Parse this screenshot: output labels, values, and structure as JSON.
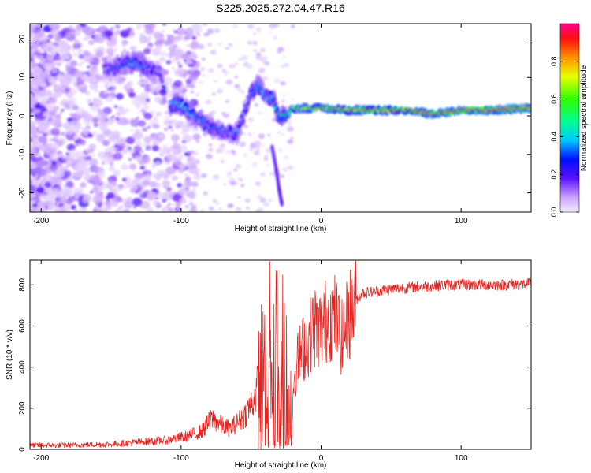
{
  "title": "S225.2025.272.04.47.R16",
  "chart_data": [
    {
      "type": "heatmap",
      "title": "S225.2025.272.04.47.R16",
      "xlabel": "Height of straight line (km)",
      "ylabel": "Frequency (Hz)",
      "xlim": [
        -208,
        150
      ],
      "ylim": [
        -25,
        24
      ],
      "xticks": [
        -200,
        -100,
        0,
        100
      ],
      "yticks": [
        -20,
        -10,
        0,
        10,
        20
      ],
      "colorbar": {
        "label": "Normalized spectral amplitude",
        "range": [
          0,
          1
        ],
        "ticks": [
          0.0,
          0.2,
          0.4,
          0.6,
          0.8
        ]
      },
      "ridge": {
        "x": [
          -155,
          -145,
          -135,
          -125,
          -115,
          -110,
          -100,
          -90,
          -80,
          -70,
          -60,
          -50,
          -45,
          -40,
          -35,
          -30,
          -25,
          -20,
          -10,
          0,
          20,
          40,
          60,
          80,
          100,
          120,
          150
        ],
        "y": [
          11.5,
          13,
          14,
          12.5,
          11,
          3,
          3,
          0,
          -3,
          -4,
          -4.5,
          6,
          8,
          5,
          4.5,
          0,
          0,
          2,
          2,
          2,
          1.5,
          1.5,
          1.5,
          0.5,
          1.5,
          1.5,
          2
        ],
        "amplitude": [
          0.25,
          0.3,
          0.35,
          0.3,
          0.25,
          0.35,
          0.4,
          0.35,
          0.3,
          0.3,
          0.3,
          0.3,
          0.35,
          0.35,
          0.4,
          0.45,
          0.5,
          0.65,
          0.7,
          0.75,
          0.8,
          0.82,
          0.85,
          0.9,
          0.92,
          0.9,
          0.85
        ]
      },
      "low_streak": {
        "x": [
          -35,
          -32,
          -30,
          -28
        ],
        "y": [
          -8,
          -14,
          -19,
          -23
        ]
      }
    },
    {
      "type": "line",
      "xlabel": "Height of straight line (km)",
      "ylabel": "SNR (10 * v/v)",
      "xlim": [
        -208,
        150
      ],
      "ylim": [
        0,
        920
      ],
      "xticks": [
        -200,
        -100,
        0,
        100
      ],
      "yticks": [
        0,
        200,
        400,
        600,
        800
      ],
      "series": [
        {
          "name": "SNR",
          "color": "#e8221e",
          "x": [
            -208,
            -180,
            -150,
            -130,
            -110,
            -95,
            -85,
            -78,
            -72,
            -65,
            -55,
            -48,
            -42,
            -38,
            -34,
            -30,
            -26,
            -22,
            -18,
            -14,
            -10,
            -5,
            0,
            5,
            10,
            15,
            20,
            25,
            30,
            40,
            50,
            70,
            90,
            110,
            130,
            150
          ],
          "y": [
            20,
            20,
            25,
            35,
            45,
            65,
            90,
            150,
            120,
            100,
            160,
            240,
            400,
            480,
            500,
            560,
            420,
            250,
            400,
            480,
            520,
            600,
            580,
            650,
            640,
            540,
            650,
            730,
            760,
            770,
            780,
            790,
            800,
            800,
            800,
            805
          ]
        }
      ]
    }
  ]
}
